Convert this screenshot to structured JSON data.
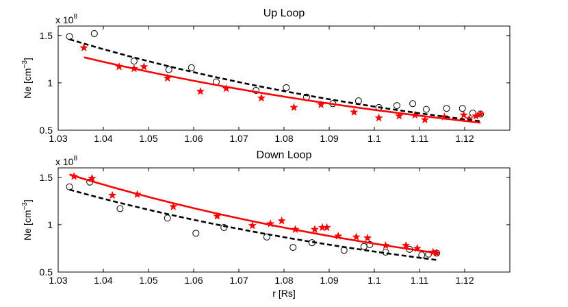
{
  "chart_data": [
    {
      "type": "scatter",
      "title": "Up Loop",
      "xlabel": "",
      "ylabel": "Ne [cm⁻³]",
      "ylabel_base": "Ne [cm",
      "ylabel_exp": "−3",
      "ylabel_close": "]",
      "y_multiplier_base": "x 10",
      "y_multiplier_exp": "8",
      "xlim": [
        1.03,
        1.13
      ],
      "ylim": [
        0.5,
        1.6
      ],
      "xticks": [
        1.03,
        1.04,
        1.05,
        1.06,
        1.07,
        1.08,
        1.09,
        1.1,
        1.11,
        1.12
      ],
      "xtick_labels": [
        "1.03",
        "1.04",
        "1.05",
        "1.06",
        "1.07",
        "1.08",
        "1.09",
        "1.1",
        "1.11",
        "1.12"
      ],
      "yticks": [
        0.5,
        1.0,
        1.5
      ],
      "ytick_labels": [
        "0.5",
        "1",
        "1.5"
      ],
      "series": [
        {
          "name": "circles",
          "marker": "circle",
          "color": "#000000",
          "points": [
            [
              1.0325,
              1.49
            ],
            [
              1.038,
              1.52
            ],
            [
              1.0468,
              1.23
            ],
            [
              1.0545,
              1.14
            ],
            [
              1.0595,
              1.16
            ],
            [
              1.065,
              1.01
            ],
            [
              1.0738,
              0.92
            ],
            [
              1.0805,
              0.95
            ],
            [
              1.085,
              0.85
            ],
            [
              1.0908,
              0.78
            ],
            [
              1.0965,
              0.81
            ],
            [
              1.101,
              0.74
            ],
            [
              1.105,
              0.76
            ],
            [
              1.1085,
              0.78
            ],
            [
              1.1115,
              0.72
            ],
            [
              1.116,
              0.73
            ],
            [
              1.1195,
              0.73
            ],
            [
              1.1218,
              0.68
            ],
            [
              1.1235,
              0.67
            ]
          ]
        },
        {
          "name": "stars",
          "marker": "star",
          "color": "#ff0000",
          "points": [
            [
              1.0357,
              1.37
            ],
            [
              1.0435,
              1.17
            ],
            [
              1.0468,
              1.15
            ],
            [
              1.049,
              1.17
            ],
            [
              1.0542,
              1.05
            ],
            [
              1.0615,
              0.91
            ],
            [
              1.0672,
              0.94
            ],
            [
              1.075,
              0.84
            ],
            [
              1.0822,
              0.74
            ],
            [
              1.0882,
              0.77
            ],
            [
              1.0955,
              0.69
            ],
            [
              1.101,
              0.63
            ],
            [
              1.1055,
              0.65
            ],
            [
              1.109,
              0.66
            ],
            [
              1.1112,
              0.61
            ],
            [
              1.1155,
              0.64
            ],
            [
              1.1198,
              0.66
            ],
            [
              1.121,
              0.62
            ],
            [
              1.1225,
              0.65
            ],
            [
              1.1235,
              0.67
            ]
          ]
        },
        {
          "name": "fit-dashed",
          "marker": "line-dashed",
          "color": "#000000",
          "x_range": [
            1.0325,
            1.1235
          ],
          "fit": {
            "y0": 1.46,
            "x0": 1.0325,
            "k": 9.88
          }
        },
        {
          "name": "fit-solid",
          "marker": "line-solid",
          "color": "#ff0000",
          "x_range": [
            1.0357,
            1.1235
          ],
          "fit": {
            "y0": 1.27,
            "x0": 1.0357,
            "k": 8.94
          }
        }
      ]
    },
    {
      "type": "scatter",
      "title": "Down Loop",
      "xlabel": "r [Rs]",
      "ylabel": "Ne [cm⁻³]",
      "ylabel_base": "Ne [cm",
      "ylabel_exp": "−3",
      "ylabel_close": "]",
      "y_multiplier_base": "x 10",
      "y_multiplier_exp": "8",
      "xlim": [
        1.03,
        1.13
      ],
      "ylim": [
        0.5,
        1.6
      ],
      "xticks": [
        1.03,
        1.04,
        1.05,
        1.06,
        1.07,
        1.08,
        1.09,
        1.1,
        1.11,
        1.12
      ],
      "xtick_labels": [
        "1.03",
        "1.04",
        "1.05",
        "1.06",
        "1.07",
        "1.08",
        "1.09",
        "1.1",
        "1.11",
        "1.12"
      ],
      "yticks": [
        0.5,
        1.0,
        1.5
      ],
      "ytick_labels": [
        "0.5",
        "1",
        "1.5"
      ],
      "series": [
        {
          "name": "circles",
          "marker": "circle",
          "color": "#000000",
          "points": [
            [
              1.0325,
              1.4
            ],
            [
              1.037,
              1.45
            ],
            [
              1.0437,
              1.17
            ],
            [
              1.0542,
              1.07
            ],
            [
              1.0605,
              0.91
            ],
            [
              1.0667,
              0.97
            ],
            [
              1.0762,
              0.87
            ],
            [
              1.082,
              0.76
            ],
            [
              1.0862,
              0.81
            ],
            [
              1.0933,
              0.73
            ],
            [
              1.0977,
              0.77
            ],
            [
              1.099,
              0.79
            ],
            [
              1.1025,
              0.71
            ],
            [
              1.1078,
              0.74
            ],
            [
              1.1105,
              0.68
            ],
            [
              1.112,
              0.69
            ],
            [
              1.1138,
              0.7
            ]
          ]
        },
        {
          "name": "stars",
          "marker": "star",
          "color": "#ff0000",
          "points": [
            [
              1.0335,
              1.51
            ],
            [
              1.0375,
              1.49
            ],
            [
              1.042,
              1.31
            ],
            [
              1.0475,
              1.32
            ],
            [
              1.0555,
              1.19
            ],
            [
              1.0652,
              1.09
            ],
            [
              1.073,
              0.99
            ],
            [
              1.077,
              1.01
            ],
            [
              1.0795,
              1.04
            ],
            [
              1.0825,
              0.95
            ],
            [
              1.0868,
              0.95
            ],
            [
              1.0885,
              0.97
            ],
            [
              1.0895,
              0.97
            ],
            [
              1.092,
              0.88
            ],
            [
              1.096,
              0.87
            ],
            [
              1.0985,
              0.86
            ],
            [
              1.1025,
              0.78
            ],
            [
              1.107,
              0.78
            ],
            [
              1.1095,
              0.75
            ],
            [
              1.113,
              0.71
            ],
            [
              1.1138,
              0.7
            ]
          ]
        },
        {
          "name": "fit-solid",
          "marker": "line-solid",
          "color": "#ff0000",
          "x_range": [
            1.0325,
            1.1138
          ],
          "fit": {
            "y0": 1.53,
            "x0": 1.0325,
            "k": 9.6
          }
        },
        {
          "name": "fit-dashed",
          "marker": "line-dashed",
          "color": "#000000",
          "x_range": [
            1.0325,
            1.1138
          ],
          "fit": {
            "y0": 1.37,
            "x0": 1.0325,
            "k": 9.6
          }
        }
      ]
    }
  ]
}
